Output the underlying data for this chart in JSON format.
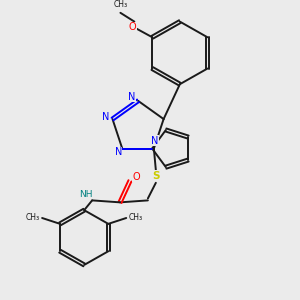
{
  "bg_color": "#ebebeb",
  "bond_color": "#1a1a1a",
  "N_color": "#0000ff",
  "O_color": "#ff0000",
  "S_color": "#cccc00",
  "NH_color": "#008080",
  "lw": 1.4,
  "dbg": 0.018,
  "xlim": [
    0,
    3
  ],
  "ylim": [
    0,
    3
  ]
}
